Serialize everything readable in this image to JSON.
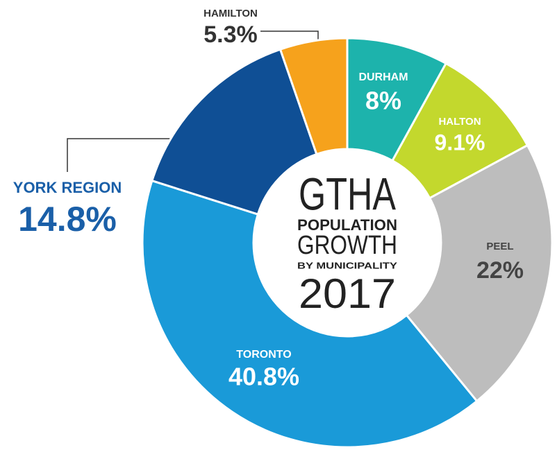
{
  "chart_data": {
    "type": "donut",
    "center_text": [
      "GTHA",
      "POPULATION",
      "GROWTH",
      "BY MUNICIPALITY",
      "2017"
    ],
    "categories": [
      "DURHAM",
      "HALTON",
      "PEEL",
      "TORONTO",
      "YORK REGION",
      "HAMILTON"
    ],
    "values": [
      8,
      9.1,
      22,
      40.8,
      14.8,
      5.3
    ],
    "value_labels": [
      "8%",
      "9.1%",
      "22%",
      "40.8%",
      "14.8%",
      "5.3%"
    ],
    "colors": [
      "#1db3ac",
      "#c3d82d",
      "#bdbdbd",
      "#1a9ad8",
      "#0f4f95",
      "#f6a21c"
    ]
  }
}
